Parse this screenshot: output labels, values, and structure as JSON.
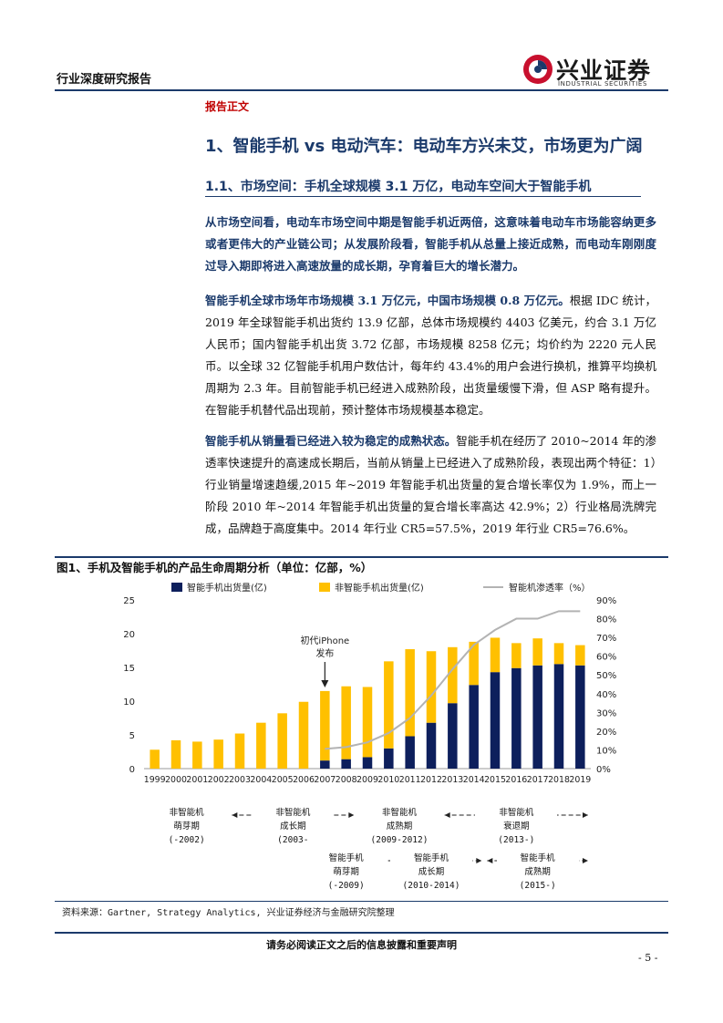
{
  "header": {
    "report_type": "行业深度研究报告",
    "logo_cn": "兴业证券",
    "logo_en": "INDUSTRIAL SECURITIES"
  },
  "section_label": "报告正文",
  "heading1": "1、智能手机 vs 电动汽车：电动车方兴未艾，市场更为广阔",
  "heading2": "1.1、市场空间：手机全球规模 3.1 万亿，电动车空间大于智能手机",
  "summary": "从市场空间看，电动车市场空间中期是智能手机近两倍，这意味着电动车市场能容纳更多或者更伟大的产业链公司；从发展阶段看，智能手机从总量上接近成熟，而电动车刚刚度过导入期即将进入高速放量的成长期，孕育着巨大的增长潜力。",
  "para1_lead": "智能手机全球市场年市场规模 3.1 万亿元，中国市场规模 0.8 万亿元。",
  "para1_body": "根据 IDC 统计，2019 年全球智能手机出货约 13.9 亿部，总体市场规模约 4403 亿美元，约合 3.1 万亿人民币；国内智能手机出货 3.72 亿部，市场规模 8258 亿元；均价约为 2220 元人民币。以全球 32 亿智能手机用户数估计，每年约 43.4%的用户会进行换机，推算平均换机周期为 2.3 年。目前智能手机已经进入成熟阶段，出货量缓慢下滑，但 ASP 略有提升。在智能手机替代品出现前，预计整体市场规模基本稳定。",
  "para2_lead": "智能手机从销量看已经进入较为稳定的成熟状态。",
  "para2_body": "智能手机在经历了 2010~2014 年的渗透率快速提升的高速成长期后，当前从销量上已经进入了成熟阶段，表现出两个特征：1）行业销量增速趋缓,2015 年~2019 年智能手机出货量的复合增长率仅为 1.9%，而上一阶段 2010 年~2014 年智能手机出货量的复合增长率高达 42.9%；2）行业格局洗牌完成，品牌趋于高度集中。2014 年行业 CR5=57.5%，2019 年行业 CR5=76.6%。",
  "figure_title": "图1、手机及智能手机的产品生命周期分析（单位：亿部，%）",
  "chart_data": {
    "type": "bar",
    "stacked": true,
    "categories": [
      "1999",
      "2000",
      "2001",
      "2002",
      "2003",
      "2004",
      "2005",
      "2006",
      "2007",
      "2008",
      "2009",
      "2010",
      "2011",
      "2012",
      "2013",
      "2014",
      "2015",
      "2016",
      "2017",
      "2018",
      "2019"
    ],
    "series": [
      {
        "name": "智能手机出货量(亿)",
        "color": "#0d1f5c",
        "values": [
          0,
          0,
          0,
          0,
          0,
          0,
          0,
          0,
          1.2,
          1.4,
          1.7,
          3.0,
          4.8,
          6.8,
          9.7,
          12.4,
          14.3,
          14.9,
          15.3,
          15.5,
          15.3
        ]
      },
      {
        "name": "非智能手机出货量(亿)",
        "color": "#ffc000",
        "values": [
          2.8,
          4.2,
          4.0,
          4.3,
          5.2,
          6.8,
          8.2,
          9.9,
          10.3,
          10.8,
          10.4,
          12.9,
          12.9,
          10.6,
          8.3,
          6.4,
          5.1,
          3.7,
          4.0,
          3.1,
          3.0
        ]
      },
      {
        "name": "智能机渗透率（%）",
        "color": "#b3b3b3",
        "axis": "right",
        "values": [
          null,
          null,
          null,
          null,
          null,
          null,
          null,
          null,
          10.5,
          11.5,
          14,
          19,
          27,
          39,
          53,
          66,
          74,
          80,
          80,
          84,
          84
        ]
      }
    ],
    "yleft": {
      "min": 0,
      "max": 25,
      "ticks": [
        "0",
        "5",
        "10",
        "15",
        "20",
        "25"
      ]
    },
    "yright": {
      "min": 0,
      "max": 90,
      "ticks": [
        "0%",
        "10%",
        "20%",
        "30%",
        "40%",
        "50%",
        "60%",
        "70%",
        "80%",
        "90%"
      ]
    },
    "annotation": "初代iPhone发布",
    "annotation_year": "2007",
    "grid": false,
    "legend": "top"
  },
  "stages_nonsmart": [
    {
      "lines": [
        "非智能机",
        "萌芽期",
        "(-2002)"
      ],
      "from": 0,
      "to": 4
    },
    {
      "lines": [
        "非智能机",
        "成长期",
        "(2003-"
      ],
      "from": 4,
      "to": 10
    },
    {
      "lines": [
        "非智能机",
        "成熟期",
        "(2009-2012)"
      ],
      "from": 10,
      "to": 14
    },
    {
      "lines": [
        "非智能机",
        "衰退期",
        "(2013-)"
      ],
      "from": 14,
      "to": 21
    }
  ],
  "stages_smart": [
    {
      "lines": [
        "智能手机",
        "萌芽期",
        "(-2009)"
      ],
      "from": 8,
      "to": 11
    },
    {
      "lines": [
        "智能手机",
        "成长期",
        "(2010-2014)"
      ],
      "from": 11,
      "to": 16
    },
    {
      "lines": [
        "智能手机",
        "成熟期",
        "(2015-)"
      ],
      "from": 16,
      "to": 21
    }
  ],
  "source": "资料来源：Gartner, Strategy Analytics, 兴业证券经济与金融研究院整理",
  "footer": "请务必阅读正文之后的信息披露和重要声明",
  "page_number": "- 5 -"
}
